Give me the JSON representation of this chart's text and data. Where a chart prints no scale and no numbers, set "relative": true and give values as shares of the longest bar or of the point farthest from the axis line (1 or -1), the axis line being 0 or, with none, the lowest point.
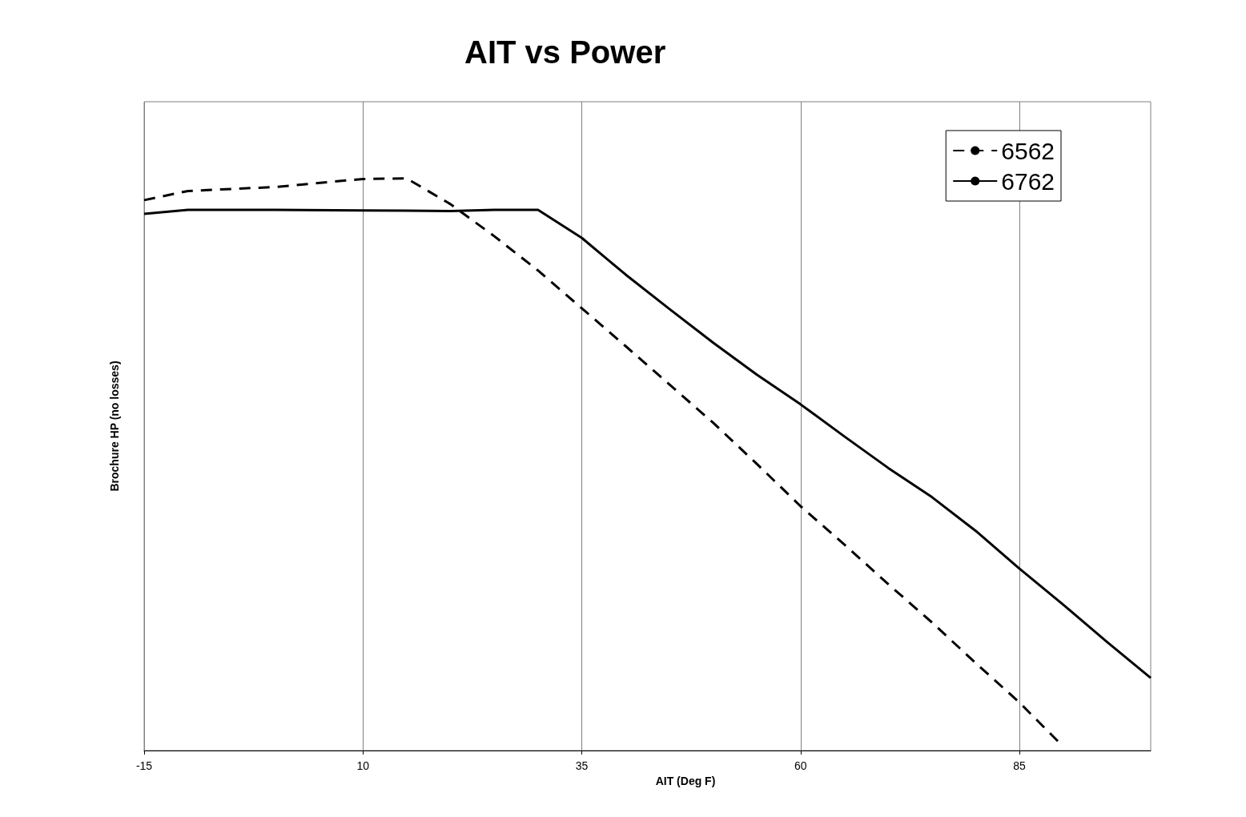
{
  "chart_data": {
    "type": "line",
    "title": "AIT vs Power",
    "xlabel": "AIT (Deg F)",
    "ylabel": "Brochure HP (no losses)",
    "relative": true,
    "xlim": [
      -15,
      100
    ],
    "xticks": [
      -15,
      10,
      35,
      60,
      85
    ],
    "grid": "x",
    "legend": "top right",
    "marker": "none",
    "series": [
      {
        "name": "6562",
        "color": "#000000",
        "line_style": "dashed",
        "x": [
          -15,
          -10,
          0,
          10,
          15,
          20,
          25,
          30,
          35,
          40,
          45,
          50,
          55,
          60,
          65,
          70,
          75,
          80,
          85,
          90
        ],
        "values": [
          0.962,
          0.978,
          0.985,
          0.999,
          1,
          0.955,
          0.899,
          0.839,
          0.773,
          0.707,
          0.64,
          0.573,
          0.501,
          0.427,
          0.36,
          0.291,
          0.224,
          0.153,
          0.084,
          0.007
        ]
      },
      {
        "name": "6762",
        "color": "#000000",
        "line_style": "solid",
        "x": [
          -15,
          -10,
          0,
          10,
          20,
          25,
          30,
          35,
          40,
          45,
          50,
          55,
          60,
          65,
          70,
          75,
          80,
          85,
          90,
          95,
          100
        ],
        "values": [
          0.938,
          0.945,
          0.945,
          0.944,
          0.943,
          0.945,
          0.945,
          0.896,
          0.832,
          0.772,
          0.713,
          0.657,
          0.605,
          0.549,
          0.494,
          0.443,
          0.384,
          0.318,
          0.255,
          0.19,
          0.127
        ]
      }
    ]
  }
}
